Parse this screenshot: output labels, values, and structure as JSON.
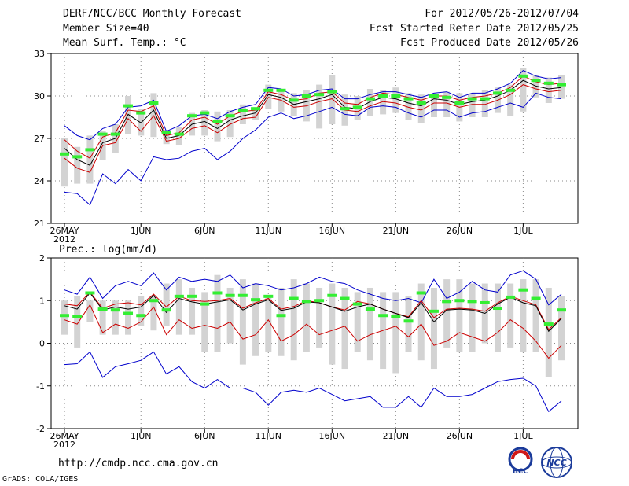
{
  "header": {
    "left_line1": "DERF/NCC/BCC Monthly Forecast",
    "left_line2": "Member Size=40",
    "left_line3": "Mean Surf. Temp.: °C",
    "right_line1": "For 2012/05/26-2012/07/04",
    "right_line2": "Fcst Started Refer Date 2012/05/25",
    "right_line3": "Fcst Produced Date 2012/05/26"
  },
  "footer": {
    "url": "http://cmdp.ncc.cma.gov.cn",
    "grads": "GrADS: COLA/IGES",
    "logo_bcc": "BCC",
    "logo_ncc": "NCC"
  },
  "colors": {
    "max_min": "#0000cc",
    "mean": "#000000",
    "spread": "#cc0000",
    "box": "#d3d3d3",
    "green": "#33ee33",
    "grid": "#888888"
  },
  "chart_data": [
    {
      "type": "line",
      "title": "Mean Surf. Temp.: °C",
      "ylim": [
        21,
        33
      ],
      "yticks": [
        21,
        24,
        27,
        30,
        33
      ],
      "x_tick_labels": [
        "26MAY",
        "1JUN",
        "6JUN",
        "11JUN",
        "16JUN",
        "21JUN",
        "26JUN",
        "1JUL"
      ],
      "x_tick_days": [
        0,
        6,
        11,
        16,
        21,
        26,
        31,
        36
      ],
      "year_label": "2012",
      "days": 40,
      "series": [
        {
          "name": "max",
          "values": [
            27.9,
            27.2,
            26.9,
            27.7,
            28.0,
            29.2,
            29.3,
            29.7,
            27.5,
            27.9,
            28.6,
            28.7,
            28.4,
            28.9,
            29.2,
            29.4,
            30.6,
            30.5,
            30.0,
            30.1,
            30.4,
            30.5,
            29.8,
            29.8,
            30.1,
            30.3,
            30.3,
            30.1,
            29.9,
            30.2,
            30.3,
            29.9,
            30.2,
            30.2,
            30.5,
            30.9,
            31.8,
            31.4,
            31.2,
            31.3
          ]
        },
        {
          "name": "upper",
          "values": [
            26.9,
            26.1,
            25.6,
            27.1,
            27.4,
            29.0,
            28.9,
            29.3,
            27.2,
            27.4,
            28.3,
            28.5,
            28.0,
            28.6,
            28.9,
            29.0,
            30.3,
            30.1,
            29.7,
            29.8,
            30.2,
            30.3,
            29.5,
            29.4,
            29.9,
            30.2,
            30.1,
            29.9,
            29.7,
            30.0,
            30.0,
            29.7,
            29.9,
            30.0,
            30.2,
            30.6,
            31.4,
            31.0,
            30.8,
            30.9
          ]
        },
        {
          "name": "mean",
          "values": [
            26.3,
            25.5,
            25.1,
            26.7,
            27.0,
            28.7,
            28.1,
            29.0,
            27.0,
            27.2,
            28.0,
            28.2,
            27.7,
            28.3,
            28.6,
            28.8,
            30.1,
            29.9,
            29.4,
            29.6,
            29.8,
            30.1,
            29.2,
            29.1,
            29.6,
            29.9,
            29.8,
            29.5,
            29.3,
            29.8,
            29.7,
            29.4,
            29.6,
            29.7,
            30.0,
            30.4,
            31.1,
            30.7,
            30.5,
            30.6
          ]
        },
        {
          "name": "lower",
          "values": [
            25.6,
            24.9,
            24.6,
            26.5,
            26.7,
            28.4,
            27.5,
            28.6,
            26.8,
            27.0,
            27.7,
            27.9,
            27.4,
            28.0,
            28.4,
            28.5,
            29.9,
            29.7,
            29.2,
            29.3,
            29.6,
            29.8,
            29.0,
            28.9,
            29.3,
            29.6,
            29.5,
            29.2,
            29.0,
            29.5,
            29.5,
            29.2,
            29.4,
            29.4,
            29.7,
            30.1,
            30.8,
            30.5,
            30.3,
            30.4
          ]
        },
        {
          "name": "min",
          "values": [
            23.2,
            23.1,
            22.3,
            24.5,
            23.8,
            24.8,
            24.0,
            25.7,
            25.5,
            25.6,
            26.1,
            26.3,
            25.5,
            26.1,
            27.0,
            27.6,
            28.5,
            28.8,
            28.4,
            28.6,
            28.9,
            29.2,
            28.7,
            28.6,
            29.2,
            29.3,
            29.2,
            28.8,
            28.5,
            29.0,
            29.0,
            28.5,
            28.8,
            28.9,
            29.2,
            29.5,
            29.2,
            30.2,
            29.9,
            29.8
          ]
        },
        {
          "name": "green_marker",
          "values": [
            25.9,
            25.7,
            26.2,
            27.3,
            27.3,
            29.3,
            28.8,
            29.5,
            27.4,
            27.3,
            28.6,
            28.8,
            28.2,
            28.6,
            29.0,
            29.1,
            30.4,
            30.4,
            29.7,
            30.0,
            30.1,
            30.3,
            29.1,
            29.2,
            29.8,
            30.0,
            30.0,
            29.8,
            29.5,
            30.0,
            29.9,
            29.5,
            29.8,
            29.8,
            30.2,
            30.4,
            31.4,
            31.1,
            30.9,
            30.8
          ]
        },
        {
          "name": "box_top",
          "values": [
            27.0,
            26.4,
            27.2,
            27.5,
            28.0,
            30.0,
            29.1,
            30.2,
            27.6,
            27.8,
            28.8,
            29.0,
            28.9,
            29.0,
            29.4,
            29.2,
            30.8,
            30.3,
            30.2,
            30.4,
            30.8,
            31.5,
            30.1,
            30.0,
            30.5,
            30.4,
            30.6,
            30.2,
            30.1,
            30.1,
            30.3,
            30.2,
            30.2,
            30.4,
            30.6,
            30.8,
            32.0,
            31.5,
            31.3,
            31.5
          ]
        },
        {
          "name": "box_bottom",
          "values": [
            23.6,
            23.8,
            23.8,
            25.5,
            26.0,
            27.3,
            27.2,
            27.1,
            26.6,
            26.5,
            27.2,
            27.2,
            26.8,
            27.1,
            28.0,
            28.3,
            29.1,
            28.9,
            28.6,
            28.2,
            27.7,
            28.0,
            27.9,
            28.3,
            28.6,
            28.7,
            28.8,
            28.3,
            28.1,
            28.5,
            28.5,
            28.2,
            28.5,
            28.5,
            28.8,
            28.6,
            28.9,
            29.9,
            29.5,
            29.8
          ]
        }
      ]
    },
    {
      "type": "line",
      "title": "Prec.: log(mm/d)",
      "ylim": [
        -2,
        2
      ],
      "yticks": [
        -2,
        -1,
        0,
        1,
        2
      ],
      "x_tick_labels": [
        "26MAY",
        "1JUN",
        "6JUN",
        "11JUN",
        "16JUN",
        "21JUN",
        "26JUN",
        "1JUL"
      ],
      "x_tick_days": [
        0,
        6,
        11,
        16,
        21,
        26,
        31,
        36
      ],
      "year_label": "2012",
      "days": 40,
      "series": [
        {
          "name": "max",
          "values": [
            1.25,
            1.15,
            1.55,
            1.05,
            1.35,
            1.45,
            1.35,
            1.65,
            1.25,
            1.55,
            1.45,
            1.5,
            1.45,
            1.6,
            1.3,
            1.4,
            1.35,
            1.25,
            1.3,
            1.4,
            1.55,
            1.45,
            1.4,
            1.25,
            1.15,
            1.05,
            1.0,
            1.05,
            0.95,
            1.5,
            1.05,
            1.2,
            1.45,
            1.25,
            1.2,
            1.6,
            1.7,
            1.5,
            0.9,
            1.15
          ]
        },
        {
          "name": "upper",
          "values": [
            0.92,
            0.88,
            1.2,
            0.82,
            0.92,
            0.95,
            0.9,
            1.15,
            0.85,
            1.1,
            1.0,
            0.98,
            1.0,
            1.05,
            0.82,
            0.95,
            1.05,
            0.8,
            0.86,
            1.0,
            0.95,
            0.85,
            0.78,
            0.98,
            0.92,
            0.8,
            0.7,
            0.62,
            1.0,
            0.6,
            0.8,
            0.82,
            0.8,
            0.75,
            0.95,
            1.1,
            1.0,
            0.9,
            0.32,
            0.6
          ]
        },
        {
          "name": "mean",
          "values": [
            0.88,
            0.8,
            1.18,
            0.78,
            0.85,
            0.8,
            0.85,
            1.12,
            0.72,
            1.05,
            0.97,
            0.92,
            0.97,
            1.02,
            0.78,
            0.92,
            1.02,
            0.77,
            0.82,
            0.97,
            0.95,
            0.85,
            0.75,
            0.85,
            0.92,
            0.8,
            0.7,
            0.6,
            0.95,
            0.5,
            0.78,
            0.8,
            0.78,
            0.7,
            0.92,
            1.08,
            0.95,
            0.88,
            0.28,
            0.58
          ]
        },
        {
          "name": "lower",
          "values": [
            0.55,
            0.45,
            0.9,
            0.25,
            0.45,
            0.35,
            0.5,
            0.85,
            0.2,
            0.55,
            0.35,
            0.42,
            0.35,
            0.5,
            0.1,
            0.2,
            0.55,
            0.05,
            0.2,
            0.45,
            0.2,
            0.3,
            0.4,
            0.05,
            0.2,
            0.3,
            0.4,
            0.15,
            0.45,
            -0.05,
            0.05,
            0.25,
            0.15,
            0.05,
            0.25,
            0.55,
            0.35,
            0.05,
            -0.35,
            -0.05
          ]
        },
        {
          "name": "min",
          "values": [
            -0.5,
            -0.48,
            -0.2,
            -0.8,
            -0.55,
            -0.48,
            -0.4,
            -0.2,
            -0.72,
            -0.55,
            -0.9,
            -1.05,
            -0.85,
            -1.05,
            -1.05,
            -1.15,
            -1.45,
            -1.15,
            -1.1,
            -1.15,
            -1.05,
            -1.2,
            -1.35,
            -1.3,
            -1.25,
            -1.5,
            -1.5,
            -1.25,
            -1.5,
            -1.05,
            -1.25,
            -1.25,
            -1.2,
            -1.05,
            -0.9,
            -0.85,
            -0.82,
            -1.0,
            -1.6,
            -1.35
          ]
        },
        {
          "name": "green_marker",
          "values": [
            0.65,
            0.62,
            1.18,
            0.8,
            0.78,
            0.7,
            0.65,
            1.0,
            0.78,
            1.1,
            1.1,
            0.92,
            1.18,
            1.12,
            1.12,
            1.02,
            1.1,
            0.65,
            1.05,
            0.98,
            1.0,
            1.12,
            1.05,
            0.92,
            0.8,
            0.65,
            0.62,
            0.52,
            1.18,
            0.75,
            0.98,
            1.0,
            0.98,
            0.95,
            0.82,
            1.08,
            1.25,
            1.05,
            0.45,
            0.78
          ]
        },
        {
          "name": "box_top",
          "values": [
            1.0,
            1.1,
            1.0,
            1.0,
            1.0,
            1.0,
            1.1,
            1.1,
            1.4,
            1.5,
            1.3,
            1.2,
            1.6,
            1.3,
            1.5,
            1.4,
            1.1,
            1.3,
            1.5,
            1.4,
            1.3,
            1.4,
            1.3,
            1.2,
            1.3,
            1.2,
            1.2,
            1.1,
            1.4,
            1.3,
            1.5,
            1.5,
            1.4,
            1.4,
            1.4,
            1.4,
            1.5,
            1.5,
            1.3,
            1.1
          ]
        },
        {
          "name": "box_bottom",
          "values": [
            0.2,
            -0.1,
            0.5,
            0.2,
            0.2,
            0.2,
            0.4,
            0.3,
            0.4,
            0.2,
            0.2,
            -0.2,
            -0.2,
            0.0,
            -0.5,
            -0.3,
            -0.2,
            -0.3,
            -0.4,
            -0.2,
            -0.1,
            -0.5,
            -0.6,
            -0.2,
            -0.4,
            -0.6,
            -0.7,
            -0.2,
            -0.4,
            -0.6,
            -0.1,
            -0.2,
            -0.2,
            0.0,
            -0.2,
            -0.1,
            -0.2,
            -0.2,
            -0.8,
            -0.4
          ]
        }
      ]
    }
  ]
}
